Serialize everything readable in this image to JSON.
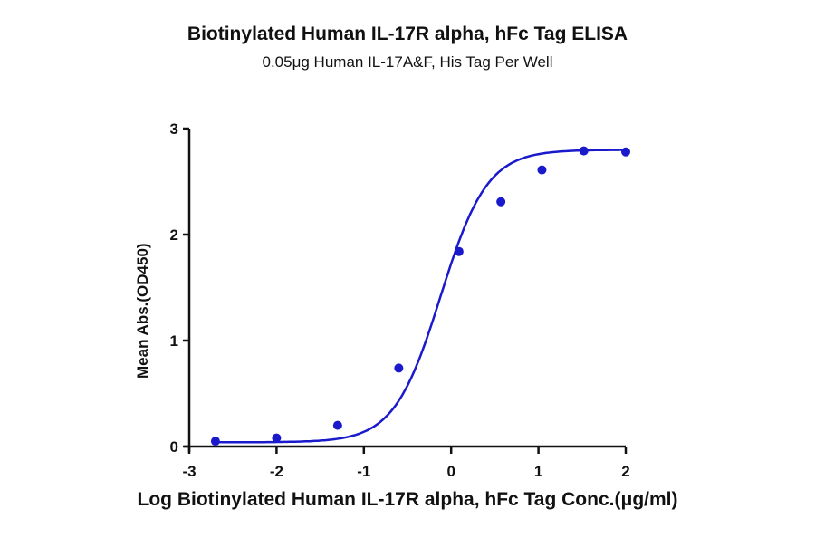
{
  "chart_data": {
    "type": "scatter",
    "title": "Biotinylated Human IL-17R alpha, hFc Tag ELISA",
    "subtitle": "0.05μg Human IL-17A&F, His Tag Per Well",
    "xlabel": "Log Biotinylated Human IL-17R alpha, hFc Tag Conc.(μg/ml)",
    "ylabel": "Mean Abs.(OD450)",
    "xlim": [
      -3,
      2
    ],
    "ylim": [
      0,
      3
    ],
    "xticks": [
      "-3",
      "-2",
      "-1",
      "0",
      "1",
      "2"
    ],
    "yticks": [
      "0",
      "1",
      "2",
      "3"
    ],
    "grid": false,
    "legend": null,
    "fit": "4-parameter logistic curve",
    "series": [
      {
        "name": "Mean Abs.(OD450)",
        "color": "#1a1acc",
        "x": [
          -2.7,
          -2.0,
          -1.3,
          -0.6,
          0.09,
          0.57,
          1.04,
          1.52,
          2.0
        ],
        "y": [
          0.05,
          0.08,
          0.2,
          0.74,
          1.84,
          2.31,
          2.61,
          2.79,
          2.78
        ]
      }
    ]
  }
}
